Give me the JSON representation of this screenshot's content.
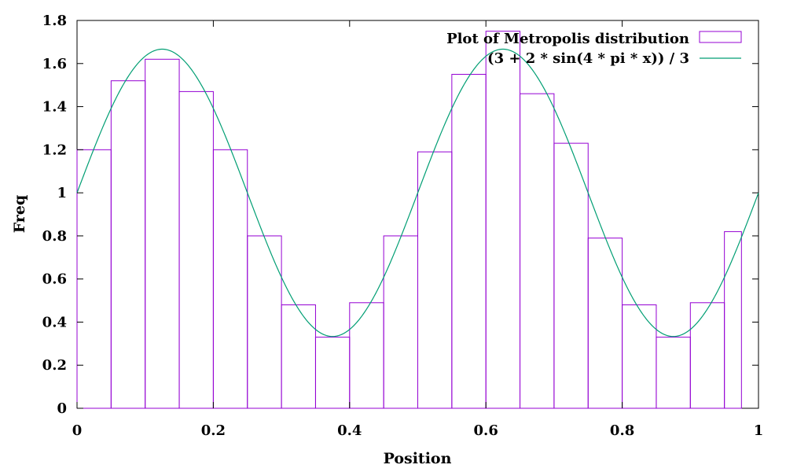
{
  "chart_data": {
    "type": "bar",
    "xlabel": "Position",
    "ylabel": "Freq",
    "xlim": [
      0,
      1
    ],
    "ylim": [
      0,
      1.8
    ],
    "xticks": [
      "0",
      "0.2",
      "0.4",
      "0.6",
      "0.8",
      "1"
    ],
    "yticks": [
      "0",
      "0.2",
      "0.4",
      "0.6",
      "0.8",
      "1",
      "1.2",
      "1.4",
      "1.6",
      "1.8"
    ],
    "grid": false,
    "legend_position": "top-right",
    "series": [
      {
        "name": "Plot of Metropolis distribution",
        "kind": "histogram",
        "color": "#9400d3",
        "bins": [
          {
            "x0": 0.0,
            "x1": 0.05,
            "value": 1.2
          },
          {
            "x0": 0.05,
            "x1": 0.1,
            "value": 1.52
          },
          {
            "x0": 0.1,
            "x1": 0.15,
            "value": 1.62
          },
          {
            "x0": 0.15,
            "x1": 0.2,
            "value": 1.47
          },
          {
            "x0": 0.2,
            "x1": 0.25,
            "value": 1.2
          },
          {
            "x0": 0.25,
            "x1": 0.3,
            "value": 0.8
          },
          {
            "x0": 0.3,
            "x1": 0.35,
            "value": 0.48
          },
          {
            "x0": 0.35,
            "x1": 0.4,
            "value": 0.33
          },
          {
            "x0": 0.4,
            "x1": 0.45,
            "value": 0.49
          },
          {
            "x0": 0.45,
            "x1": 0.5,
            "value": 0.8
          },
          {
            "x0": 0.5,
            "x1": 0.55,
            "value": 1.19
          },
          {
            "x0": 0.55,
            "x1": 0.6,
            "value": 1.55
          },
          {
            "x0": 0.6,
            "x1": 0.65,
            "value": 1.75
          },
          {
            "x0": 0.65,
            "x1": 0.7,
            "value": 1.46
          },
          {
            "x0": 0.7,
            "x1": 0.75,
            "value": 1.23
          },
          {
            "x0": 0.75,
            "x1": 0.8,
            "value": 0.79
          },
          {
            "x0": 0.8,
            "x1": 0.85,
            "value": 0.48
          },
          {
            "x0": 0.85,
            "x1": 0.9,
            "value": 0.33
          },
          {
            "x0": 0.9,
            "x1": 0.95,
            "value": 0.49
          },
          {
            "x0": 0.95,
            "x1": 0.975,
            "value": 0.82
          }
        ]
      },
      {
        "name": "(3 + 2 * sin(4 * pi * x)) / 3",
        "kind": "function",
        "color": "#009e73",
        "formula": "(3 + 2 * sin(4 * pi * x)) / 3"
      }
    ]
  }
}
